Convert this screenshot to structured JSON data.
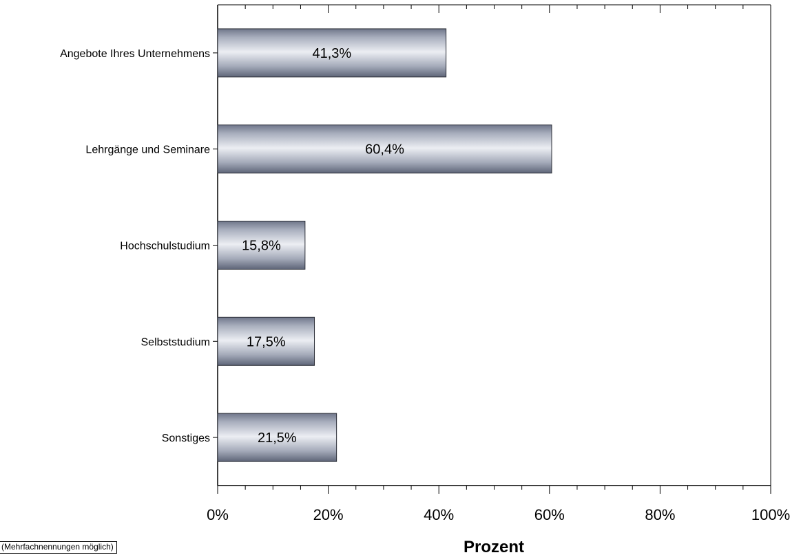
{
  "chart_data": {
    "type": "bar",
    "orientation": "horizontal",
    "categories": [
      "Angebote Ihres Unternehmens",
      "Lehrgänge und Seminare",
      "Hochschulstudium",
      "Selbststudium",
      "Sonstiges"
    ],
    "values": [
      41.3,
      60.4,
      15.8,
      17.5,
      21.5
    ],
    "value_labels": [
      "41,3%",
      "60,4%",
      "15,8%",
      "17,5%",
      "21,5%"
    ],
    "xlabel": "Prozent",
    "xlim": [
      0,
      100
    ],
    "x_ticks": [
      0,
      20,
      40,
      60,
      80,
      100
    ],
    "x_tick_labels": [
      "0%",
      "20%",
      "40%",
      "60%",
      "80%",
      "100%"
    ],
    "grid": false,
    "bar_color": "#a4aab9"
  },
  "footnote": "(Mehrfachnennungen möglich)"
}
